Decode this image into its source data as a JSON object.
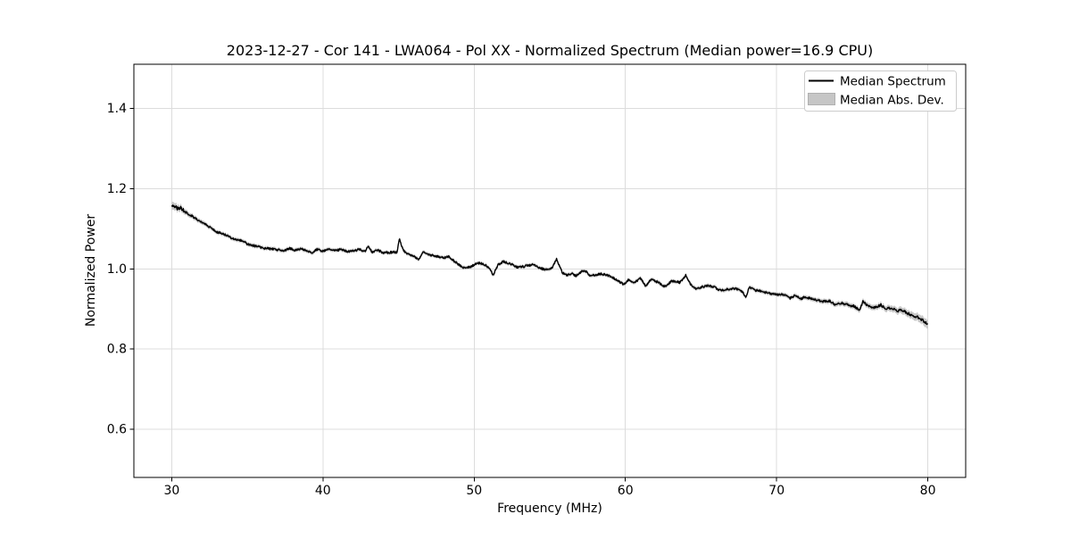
{
  "chart_data": {
    "type": "line",
    "title": "2023-12-27 - Cor 141 - LWA064 - Pol XX - Normalized Spectrum (Median power=16.9 CPU)",
    "xlabel": "Frequency (MHz)",
    "ylabel": "Normalized Power",
    "xlim": [
      27.5,
      82.5
    ],
    "ylim": [
      0.48,
      1.51
    ],
    "xticks": [
      30,
      40,
      50,
      60,
      70,
      80
    ],
    "yticks": [
      0.6,
      0.8,
      1.0,
      1.2,
      1.4
    ],
    "grid": true,
    "colors": {
      "line": "#000000",
      "band": "#c6c6c6",
      "band_edge": "#b0b0b0",
      "grid": "#dcdcdc",
      "frame": "#000000",
      "legend_border": "#cccccc",
      "background": "#ffffff"
    },
    "legend": {
      "position": "upper right",
      "entries": [
        {
          "label": "Median Spectrum",
          "type": "line",
          "color": "#000000"
        },
        {
          "label": "Median Abs. Dev.",
          "type": "patch",
          "color": "#c6c6c6"
        }
      ]
    },
    "series": [
      {
        "name": "Median Spectrum",
        "color": "#000000",
        "x_range": [
          30.0,
          80.0
        ],
        "keypoints": {
          "freq": [
            30.0,
            30.2,
            30.4,
            30.6,
            30.8,
            31.0,
            31.5,
            32.0,
            32.5,
            33.0,
            33.5,
            34.0,
            34.4,
            34.7,
            35.0,
            35.5,
            36.0,
            36.5,
            37.0,
            37.4,
            37.8,
            38.2,
            38.6,
            39.0,
            39.3,
            39.6,
            40.0,
            40.4,
            40.8,
            41.2,
            41.6,
            42.0,
            42.4,
            42.8,
            43.0,
            43.25,
            43.6,
            44.0,
            44.5,
            44.9,
            45.05,
            45.3,
            45.5,
            46.0,
            46.35,
            46.65,
            47.0,
            47.5,
            48.0,
            48.35,
            48.7,
            49.0,
            49.4,
            49.75,
            50.2,
            50.6,
            51.0,
            51.25,
            51.6,
            51.95,
            52.4,
            52.9,
            53.4,
            53.9,
            54.4,
            54.9,
            55.15,
            55.45,
            55.8,
            56.1,
            56.45,
            56.75,
            57.1,
            57.35,
            57.65,
            58.0,
            58.4,
            58.9,
            59.4,
            59.9,
            60.2,
            60.55,
            61.0,
            61.35,
            61.7,
            62.2,
            62.6,
            63.1,
            63.6,
            64.0,
            64.3,
            64.65,
            65.1,
            65.5,
            65.9,
            66.3,
            66.8,
            67.2,
            67.6,
            68.0,
            68.15,
            68.6,
            69.2,
            69.6,
            70.0,
            70.5,
            70.9,
            71.2,
            71.6,
            71.9,
            72.4,
            72.8,
            73.1,
            73.5,
            73.9,
            74.3,
            74.7,
            75.1,
            75.5,
            75.7,
            76.1,
            76.5,
            76.9,
            77.2,
            77.6,
            78.0,
            78.2,
            78.6,
            79.0,
            79.4,
            79.7,
            80.0
          ],
          "value": [
            1.155,
            1.158,
            1.149,
            1.152,
            1.145,
            1.139,
            1.128,
            1.116,
            1.105,
            1.092,
            1.086,
            1.076,
            1.071,
            1.07,
            1.062,
            1.057,
            1.052,
            1.05,
            1.048,
            1.045,
            1.051,
            1.046,
            1.05,
            1.044,
            1.04,
            1.049,
            1.044,
            1.05,
            1.045,
            1.049,
            1.043,
            1.045,
            1.048,
            1.044,
            1.058,
            1.041,
            1.047,
            1.04,
            1.041,
            1.042,
            1.075,
            1.046,
            1.04,
            1.031,
            1.024,
            1.042,
            1.035,
            1.031,
            1.027,
            1.031,
            1.018,
            1.01,
            1.001,
            1.005,
            1.015,
            1.012,
            1.003,
            0.985,
            1.011,
            1.018,
            1.013,
            1.003,
            1.007,
            1.01,
            1.001,
            0.997,
            1.003,
            1.024,
            0.992,
            0.984,
            0.988,
            0.982,
            0.993,
            0.995,
            0.983,
            0.984,
            0.988,
            0.983,
            0.973,
            0.961,
            0.973,
            0.965,
            0.976,
            0.957,
            0.973,
            0.966,
            0.956,
            0.97,
            0.966,
            0.984,
            0.962,
            0.95,
            0.955,
            0.958,
            0.954,
            0.946,
            0.949,
            0.951,
            0.947,
            0.93,
            0.954,
            0.947,
            0.942,
            0.938,
            0.935,
            0.936,
            0.927,
            0.933,
            0.925,
            0.93,
            0.925,
            0.921,
            0.918,
            0.92,
            0.91,
            0.914,
            0.91,
            0.907,
            0.896,
            0.918,
            0.907,
            0.903,
            0.91,
            0.899,
            0.903,
            0.892,
            0.899,
            0.89,
            0.883,
            0.879,
            0.871,
            0.861
          ]
        },
        "noise_scatter": {
          "freq": [
            30.0,
            30.5,
            31.0,
            31.5,
            40.0,
            55.0,
            70.0,
            77.0,
            79.0,
            80.0
          ],
          "amplitude": [
            0.0065,
            0.005,
            0.0035,
            0.0028,
            0.0026,
            0.0026,
            0.0028,
            0.0032,
            0.0035,
            0.004
          ]
        }
      },
      {
        "name": "Median Abs. Dev.",
        "color": "#c6c6c6",
        "band_halfwidth": {
          "freq": [
            30.0,
            30.5,
            31.0,
            33.0,
            45.0,
            60.0,
            70.0,
            74.0,
            77.0,
            79.0,
            80.0
          ],
          "value": [
            0.01,
            0.008,
            0.006,
            0.005,
            0.0045,
            0.0045,
            0.005,
            0.006,
            0.007,
            0.009,
            0.011
          ]
        }
      }
    ]
  }
}
